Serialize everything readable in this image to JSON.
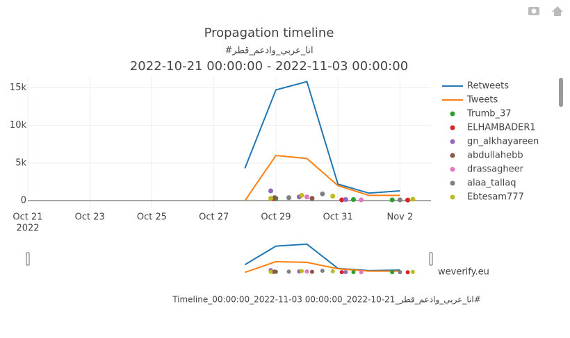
{
  "chart_data": {
    "type": "line",
    "title": "Propagation timeline",
    "subtitle": "#انا_عربي_وادعم_قطر",
    "date_range": "2022-10-21 00:00:00 - 2022-11-03 00:00:00",
    "xlim": [
      "2022-10-21",
      "2022-11-03"
    ],
    "ylim": [
      -1000,
      16500
    ],
    "xticks": [
      {
        "value": "2022-10-21",
        "label": "Oct 21"
      },
      {
        "value": "2022-10-23",
        "label": "Oct 23"
      },
      {
        "value": "2022-10-25",
        "label": "Oct 25"
      },
      {
        "value": "2022-10-27",
        "label": "Oct 27"
      },
      {
        "value": "2022-10-29",
        "label": "Oct 29"
      },
      {
        "value": "2022-10-31",
        "label": "Oct 31"
      },
      {
        "value": "2022-11-02",
        "label": "Nov 2"
      }
    ],
    "xtick_year": "2022",
    "yticks": [
      0,
      {
        "value": 5000,
        "label": "5k"
      },
      {
        "value": 10000,
        "label": "10k"
      },
      {
        "value": 15000,
        "label": "15k"
      }
    ],
    "grid": true,
    "series": [
      {
        "name": "Retweets",
        "color": "#1f77b4",
        "mode": "lines",
        "x": [
          "2022-10-28",
          "2022-10-29",
          "2022-10-30",
          "2022-10-31",
          "2022-11-01",
          "2022-11-02"
        ],
        "values": [
          4300,
          14700,
          15800,
          2200,
          1000,
          1300
        ]
      },
      {
        "name": "Tweets",
        "color": "#ff7f0e",
        "mode": "lines",
        "x": [
          "2022-10-28",
          "2022-10-29",
          "2022-10-30",
          "2022-10-31",
          "2022-11-01",
          "2022-11-02"
        ],
        "values": [
          0,
          6000,
          5600,
          2000,
          700,
          700
        ]
      },
      {
        "name": "Trumb_37",
        "color": "#2ca02c",
        "mode": "markers",
        "x": [
          "2022-10-29T00:00",
          "2022-10-31T12:00",
          "2022-11-01T18:00"
        ],
        "values": [
          300,
          150,
          100
        ]
      },
      {
        "name": "ELHAMBADER1",
        "color": "#d62728",
        "mode": "markers",
        "x": [
          "2022-10-28T22:00",
          "2022-10-31T03:00",
          "2022-11-02T06:00"
        ],
        "values": [
          250,
          100,
          80
        ]
      },
      {
        "name": "gn_alkhayareen",
        "color": "#9467bd",
        "mode": "markers",
        "x": [
          "2022-10-28T20:00",
          "2022-10-29T18:00",
          "2022-10-31T06:00"
        ],
        "values": [
          1300,
          500,
          150
        ]
      },
      {
        "name": "abdullahebb",
        "color": "#8c564b",
        "mode": "markers",
        "x": [
          "2022-10-28T23:00",
          "2022-10-30T04:00"
        ],
        "values": [
          400,
          300
        ]
      },
      {
        "name": "drassagheer",
        "color": "#e377c2",
        "mode": "markers",
        "x": [
          "2022-10-30T00:00",
          "2022-10-31T18:00"
        ],
        "values": [
          500,
          100
        ]
      },
      {
        "name": "alaa_tallaq",
        "color": "#7f7f7f",
        "mode": "markers",
        "x": [
          "2022-10-29T10:00",
          "2022-10-30T12:00",
          "2022-11-02T00:00"
        ],
        "values": [
          400,
          900,
          100
        ]
      },
      {
        "name": "Ebtesam777",
        "color": "#bcbd22",
        "mode": "markers",
        "x": [
          "2022-10-28T20:00",
          "2022-10-29T20:00",
          "2022-10-30T20:00",
          "2022-11-02T10:00"
        ],
        "values": [
          300,
          700,
          600,
          200
        ]
      }
    ],
    "watermark": "weverify.eu",
    "caption": "Timeline_انا_عربي_وادعم_قطر_21-10-2022_00:00:00 03-11-2022_00:00:00#"
  }
}
